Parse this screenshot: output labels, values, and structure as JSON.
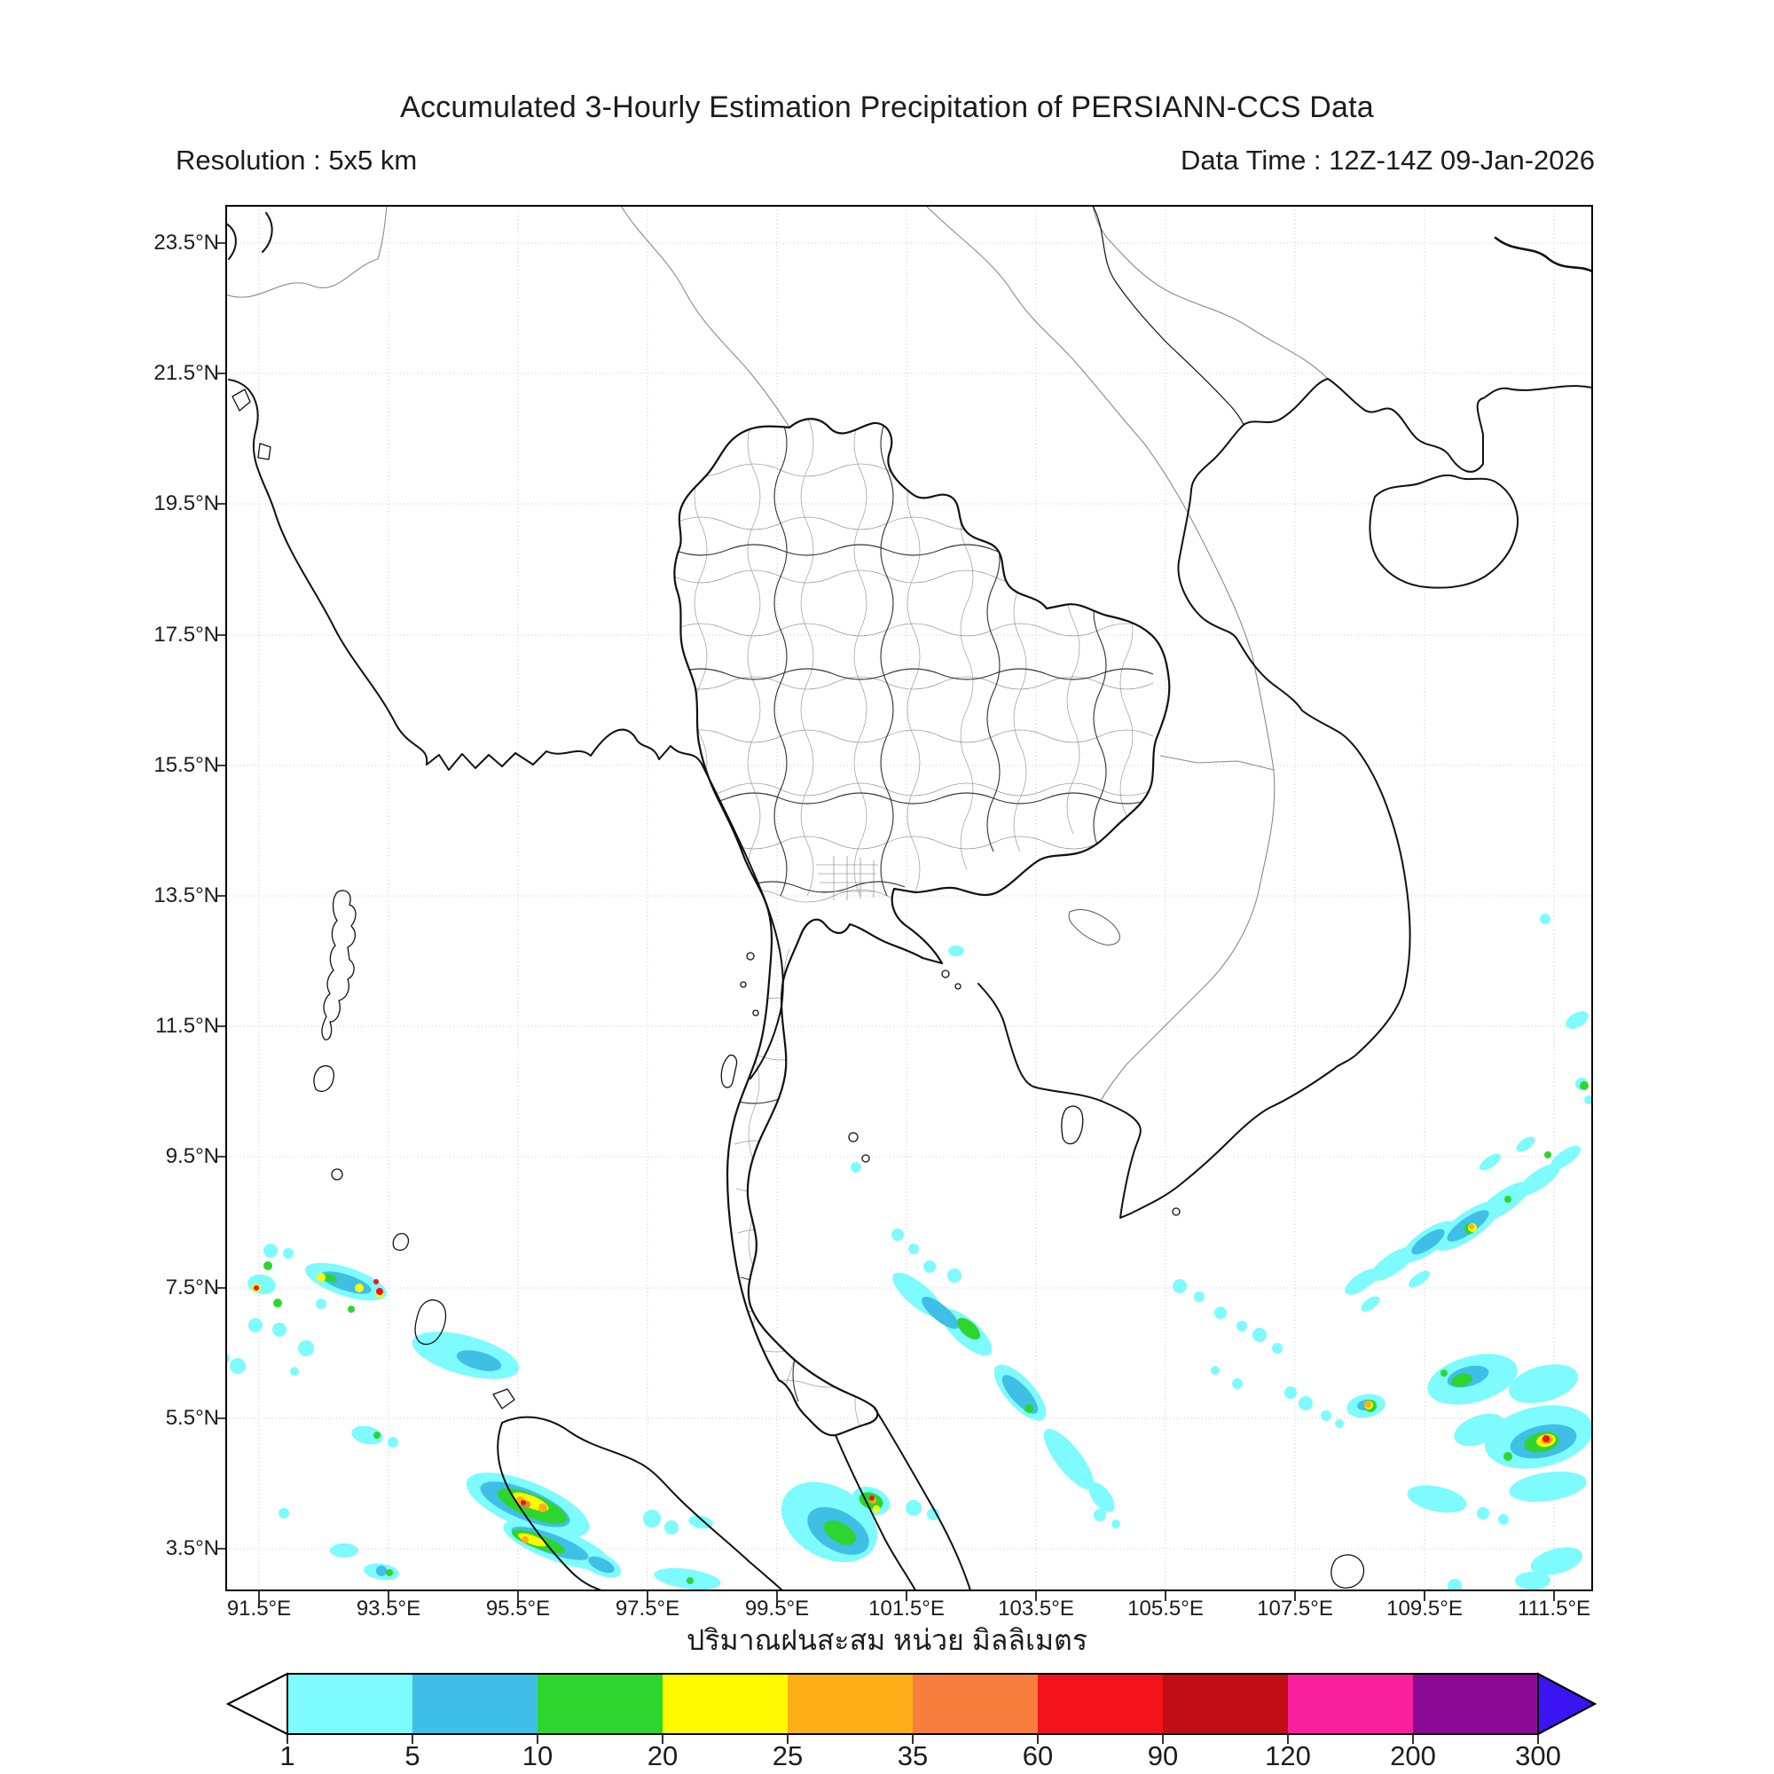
{
  "header": {
    "title": "Accumulated 3-Hourly Estimation Precipitation of PERSIANN-CCS Data",
    "resolution": "Resolution : 5x5 km",
    "data_time": "Data Time : 12Z-14Z 09-Jan-2026"
  },
  "map": {
    "y_tick_labels": [
      "23.5°N",
      "21.5°N",
      "19.5°N",
      "17.5°N",
      "15.5°N",
      "13.5°N",
      "11.5°N",
      "9.5°N",
      "7.5°N",
      "5.5°N",
      "3.5°N"
    ],
    "x_tick_labels": [
      "91.5°E",
      "93.5°E",
      "95.5°E",
      "97.5°E",
      "99.5°E",
      "101.5°E",
      "103.5°E",
      "105.5°E",
      "107.5°E",
      "109.5°E",
      "111.5°E"
    ]
  },
  "colorbar": {
    "axis_label": "ปริมาณฝนสะสม หน่วย มิลลิเมตร",
    "tick_labels": [
      "1",
      "5",
      "10",
      "20",
      "25",
      "35",
      "60",
      "90",
      "120",
      "200",
      "300"
    ],
    "segment_colors": [
      "#7dfbff",
      "#3fbee6",
      "#2ed52e",
      "#fdf900",
      "#fcaf17",
      "#f87e3d",
      "#f2121c",
      "#c10d15",
      "#f9219e",
      "#8b0a94"
    ],
    "underflow_color": "#ffffff",
    "overflow_color": "#3a14f2"
  }
}
